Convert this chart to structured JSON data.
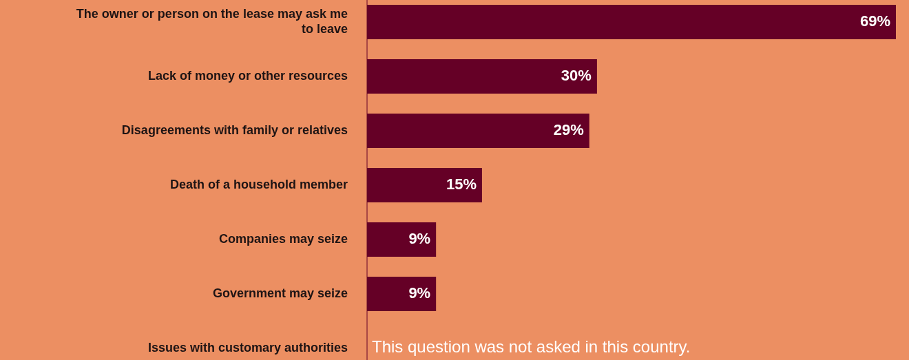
{
  "chart_data": {
    "type": "bar",
    "orientation": "horizontal",
    "categories": [
      "The owner or person on the lease may ask me to leave",
      "Lack of money or other resources",
      "Disagreements with family or relatives",
      "Death of a household member",
      "Companies may seize",
      "Government may seize",
      "Issues with customary authorities"
    ],
    "values": [
      69,
      30,
      29,
      15,
      9,
      9,
      null
    ],
    "value_labels": [
      "69%",
      "30%",
      "29%",
      "15%",
      "9%",
      "9%",
      null
    ],
    "color": "#650026",
    "annotations": [
      "This question was not asked in this country."
    ]
  }
}
